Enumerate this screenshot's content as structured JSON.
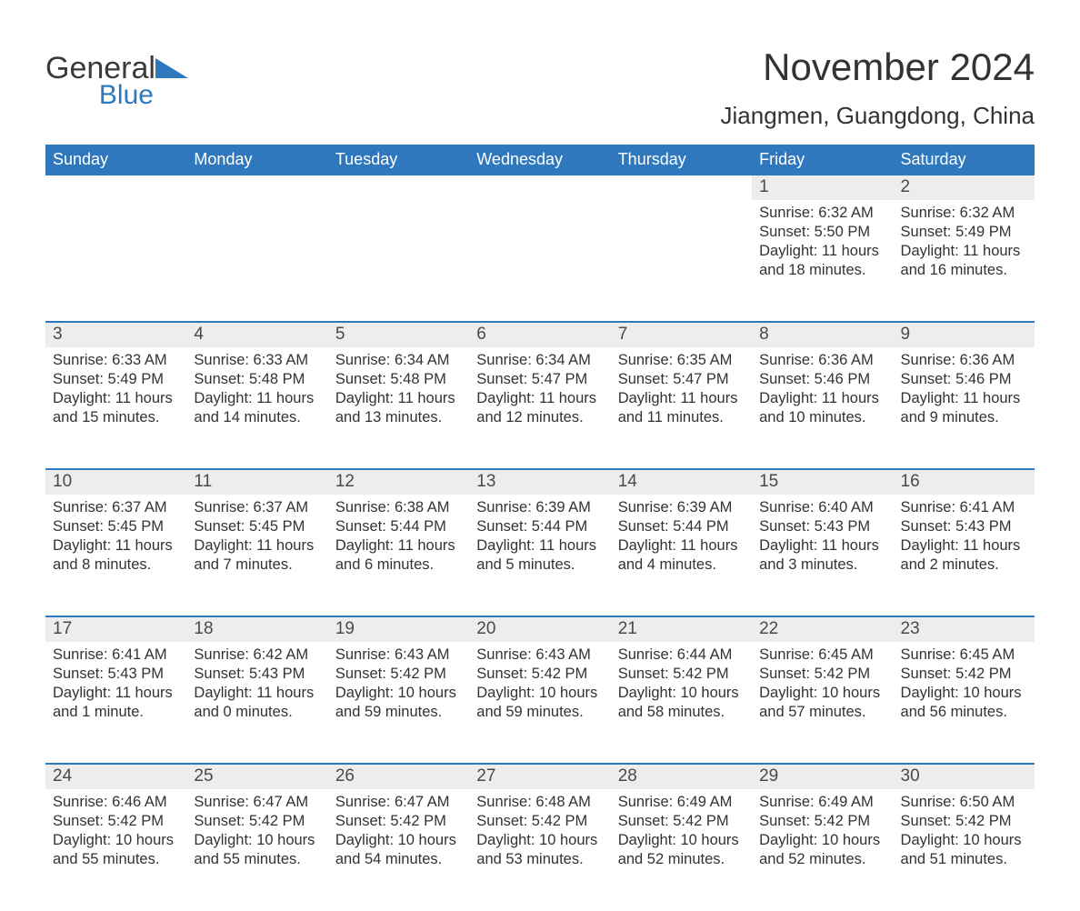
{
  "brand": {
    "name": "General",
    "sub": "Blue",
    "color": "#2f78bd"
  },
  "title": "November 2024",
  "location": "Jiangmen, Guangdong, China",
  "colors": {
    "header_bg": "#2f78bd",
    "header_text": "#ffffff",
    "daynum_bg": "#ededed",
    "text": "#333333",
    "page_bg": "#ffffff"
  },
  "font": {
    "family": "Arial",
    "title_size": 42,
    "location_size": 26,
    "header_size": 18,
    "daynum_size": 19,
    "cell_size": 16.5
  },
  "layout": {
    "columns": 7,
    "rows": 5,
    "start_day_index": 5
  },
  "weekdays": [
    "Sunday",
    "Monday",
    "Tuesday",
    "Wednesday",
    "Thursday",
    "Friday",
    "Saturday"
  ],
  "days": [
    {
      "n": 1,
      "sunrise": "6:32 AM",
      "sunset": "5:50 PM",
      "daylight": "11 hours and 18 minutes."
    },
    {
      "n": 2,
      "sunrise": "6:32 AM",
      "sunset": "5:49 PM",
      "daylight": "11 hours and 16 minutes."
    },
    {
      "n": 3,
      "sunrise": "6:33 AM",
      "sunset": "5:49 PM",
      "daylight": "11 hours and 15 minutes."
    },
    {
      "n": 4,
      "sunrise": "6:33 AM",
      "sunset": "5:48 PM",
      "daylight": "11 hours and 14 minutes."
    },
    {
      "n": 5,
      "sunrise": "6:34 AM",
      "sunset": "5:48 PM",
      "daylight": "11 hours and 13 minutes."
    },
    {
      "n": 6,
      "sunrise": "6:34 AM",
      "sunset": "5:47 PM",
      "daylight": "11 hours and 12 minutes."
    },
    {
      "n": 7,
      "sunrise": "6:35 AM",
      "sunset": "5:47 PM",
      "daylight": "11 hours and 11 minutes."
    },
    {
      "n": 8,
      "sunrise": "6:36 AM",
      "sunset": "5:46 PM",
      "daylight": "11 hours and 10 minutes."
    },
    {
      "n": 9,
      "sunrise": "6:36 AM",
      "sunset": "5:46 PM",
      "daylight": "11 hours and 9 minutes."
    },
    {
      "n": 10,
      "sunrise": "6:37 AM",
      "sunset": "5:45 PM",
      "daylight": "11 hours and 8 minutes."
    },
    {
      "n": 11,
      "sunrise": "6:37 AM",
      "sunset": "5:45 PM",
      "daylight": "11 hours and 7 minutes."
    },
    {
      "n": 12,
      "sunrise": "6:38 AM",
      "sunset": "5:44 PM",
      "daylight": "11 hours and 6 minutes."
    },
    {
      "n": 13,
      "sunrise": "6:39 AM",
      "sunset": "5:44 PM",
      "daylight": "11 hours and 5 minutes."
    },
    {
      "n": 14,
      "sunrise": "6:39 AM",
      "sunset": "5:44 PM",
      "daylight": "11 hours and 4 minutes."
    },
    {
      "n": 15,
      "sunrise": "6:40 AM",
      "sunset": "5:43 PM",
      "daylight": "11 hours and 3 minutes."
    },
    {
      "n": 16,
      "sunrise": "6:41 AM",
      "sunset": "5:43 PM",
      "daylight": "11 hours and 2 minutes."
    },
    {
      "n": 17,
      "sunrise": "6:41 AM",
      "sunset": "5:43 PM",
      "daylight": "11 hours and 1 minute."
    },
    {
      "n": 18,
      "sunrise": "6:42 AM",
      "sunset": "5:43 PM",
      "daylight": "11 hours and 0 minutes."
    },
    {
      "n": 19,
      "sunrise": "6:43 AM",
      "sunset": "5:42 PM",
      "daylight": "10 hours and 59 minutes."
    },
    {
      "n": 20,
      "sunrise": "6:43 AM",
      "sunset": "5:42 PM",
      "daylight": "10 hours and 59 minutes."
    },
    {
      "n": 21,
      "sunrise": "6:44 AM",
      "sunset": "5:42 PM",
      "daylight": "10 hours and 58 minutes."
    },
    {
      "n": 22,
      "sunrise": "6:45 AM",
      "sunset": "5:42 PM",
      "daylight": "10 hours and 57 minutes."
    },
    {
      "n": 23,
      "sunrise": "6:45 AM",
      "sunset": "5:42 PM",
      "daylight": "10 hours and 56 minutes."
    },
    {
      "n": 24,
      "sunrise": "6:46 AM",
      "sunset": "5:42 PM",
      "daylight": "10 hours and 55 minutes."
    },
    {
      "n": 25,
      "sunrise": "6:47 AM",
      "sunset": "5:42 PM",
      "daylight": "10 hours and 55 minutes."
    },
    {
      "n": 26,
      "sunrise": "6:47 AM",
      "sunset": "5:42 PM",
      "daylight": "10 hours and 54 minutes."
    },
    {
      "n": 27,
      "sunrise": "6:48 AM",
      "sunset": "5:42 PM",
      "daylight": "10 hours and 53 minutes."
    },
    {
      "n": 28,
      "sunrise": "6:49 AM",
      "sunset": "5:42 PM",
      "daylight": "10 hours and 52 minutes."
    },
    {
      "n": 29,
      "sunrise": "6:49 AM",
      "sunset": "5:42 PM",
      "daylight": "10 hours and 52 minutes."
    },
    {
      "n": 30,
      "sunrise": "6:50 AM",
      "sunset": "5:42 PM",
      "daylight": "10 hours and 51 minutes."
    }
  ],
  "labels": {
    "sunrise": "Sunrise:",
    "sunset": "Sunset:",
    "daylight": "Daylight:"
  }
}
